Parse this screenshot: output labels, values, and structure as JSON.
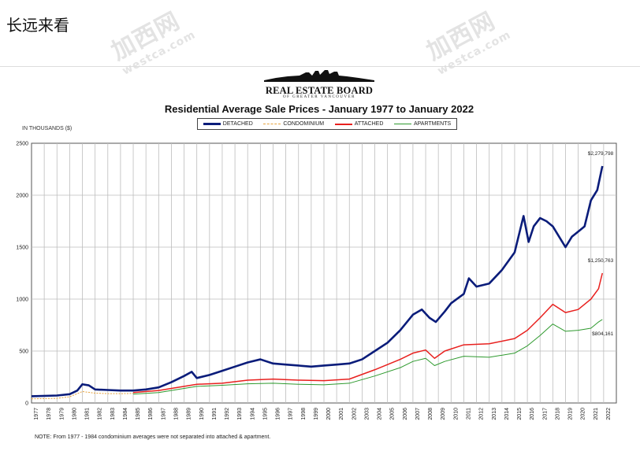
{
  "header": {
    "text": "长远来看"
  },
  "watermarks": [
    {
      "main": "加西网",
      "sub": "westca.com"
    },
    {
      "main": "加西网",
      "sub": "westca.com"
    }
  ],
  "logo": {
    "name": "REAL ESTATE BOARD",
    "sub": "OF GREATER VANCOUVER"
  },
  "chart_data": {
    "type": "line",
    "title": "Residential Average Sale Prices  -  January 1977 to January 2022",
    "ylabel": "IN THOUSANDS ($)",
    "xlabel": "",
    "ylim": [
      0,
      2500
    ],
    "yticks": [
      "0",
      "500",
      "1000",
      "1500",
      "2000",
      "2500"
    ],
    "xticks": [
      "1977",
      "1978",
      "1979",
      "1980",
      "1981",
      "1982",
      "1983",
      "1984",
      "1985",
      "1986",
      "1987",
      "1988",
      "1989",
      "1990",
      "1991",
      "1992",
      "1993",
      "1994",
      "1995",
      "1996",
      "1997",
      "1998",
      "1999",
      "2000",
      "2001",
      "2002",
      "2003",
      "2004",
      "2005",
      "2006",
      "2007",
      "2008",
      "2009",
      "2010",
      "2011",
      "2012",
      "2013",
      "2014",
      "2015",
      "2016",
      "2017",
      "2018",
      "2019",
      "2020",
      "2021",
      "2022"
    ],
    "grid": true,
    "legend_position": "top-center",
    "series": [
      {
        "name": "DETACHED",
        "color": "#0a1c7a",
        "x": [
          1977,
          1979,
          1980,
          1980.6,
          1981,
          1981.5,
          1982,
          1983,
          1984,
          1985,
          1986,
          1987,
          1988,
          1989,
          1989.6,
          1990,
          1991,
          1992,
          1993,
          1994,
          1995,
          1996,
          1997,
          1998,
          1999,
          2000,
          2001,
          2002,
          2003,
          2004,
          2005,
          2006,
          2007,
          2007.7,
          2008.3,
          2008.8,
          2009.5,
          2010,
          2011,
          2011.4,
          2012,
          2013,
          2014,
          2015,
          2015.7,
          2016.1,
          2016.5,
          2017,
          2017.5,
          2018,
          2018.5,
          2019,
          2019.5,
          2020,
          2020.5,
          2021,
          2021.5,
          2021.9
        ],
        "values": [
          65,
          72,
          85,
          120,
          180,
          170,
          130,
          125,
          120,
          120,
          130,
          150,
          200,
          260,
          300,
          240,
          270,
          310,
          350,
          390,
          420,
          380,
          370,
          360,
          350,
          360,
          370,
          380,
          420,
          500,
          580,
          700,
          850,
          900,
          820,
          780,
          880,
          960,
          1050,
          1200,
          1120,
          1150,
          1280,
          1450,
          1800,
          1550,
          1700,
          1780,
          1750,
          1700,
          1600,
          1500,
          1600,
          1650,
          1700,
          1950,
          2050,
          2280
        ]
      },
      {
        "name": "CONDOMINIUM",
        "color": "#e6a23c",
        "x": [
          1977,
          1979,
          1980,
          1981,
          1982,
          1983,
          1984,
          1985
        ],
        "values": [
          40,
          45,
          60,
          110,
          95,
          90,
          90,
          92
        ]
      },
      {
        "name": "ATTACHED",
        "color": "#e8201e",
        "x": [
          1985,
          1987,
          1989,
          1990,
          1992,
          1994,
          1996,
          1998,
          2000,
          2002,
          2004,
          2006,
          2007,
          2008,
          2008.7,
          2009.5,
          2011,
          2013,
          2015,
          2016,
          2017,
          2018,
          2019,
          2020,
          2021,
          2021.6,
          2021.9
        ],
        "values": [
          100,
          120,
          160,
          180,
          190,
          220,
          230,
          220,
          215,
          230,
          320,
          420,
          480,
          510,
          430,
          500,
          560,
          570,
          620,
          700,
          820,
          950,
          870,
          900,
          1000,
          1100,
          1250
        ]
      },
      {
        "name": "APARTMENTS",
        "color": "#2e9a2e",
        "x": [
          1985,
          1987,
          1989,
          1990,
          1992,
          1994,
          1996,
          1998,
          2000,
          2002,
          2004,
          2006,
          2007,
          2008,
          2008.7,
          2009.5,
          2011,
          2013,
          2015,
          2016,
          2017,
          2018,
          2019,
          2020,
          2021,
          2021.6,
          2021.9
        ],
        "values": [
          85,
          100,
          140,
          160,
          170,
          185,
          190,
          180,
          175,
          190,
          260,
          340,
          400,
          430,
          360,
          400,
          450,
          440,
          480,
          550,
          650,
          760,
          690,
          700,
          720,
          780,
          804
        ]
      }
    ],
    "annotations": [
      "$2,279,798",
      "$1,250,763",
      "$804,161"
    ]
  },
  "note": "NOTE:  From 1977 - 1984 condominium averages were not separated into attached & apartment."
}
